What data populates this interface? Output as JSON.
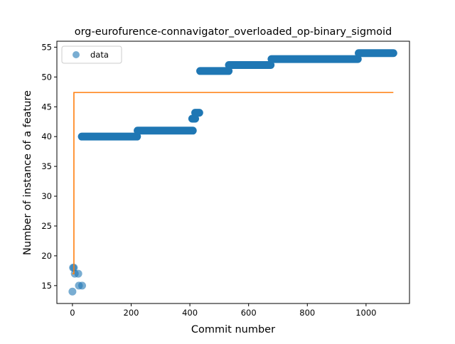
{
  "chart_data": {
    "type": "scatter",
    "title": "org-eurofurence-connavigator_overloaded_op-binary_sigmoid",
    "xlabel": "Commit number",
    "ylabel": "Number of instance of a feature",
    "xlim": [
      -53,
      1148
    ],
    "ylim": [
      12,
      56
    ],
    "xticks": [
      0,
      200,
      400,
      600,
      800,
      1000
    ],
    "yticks": [
      15,
      20,
      25,
      30,
      35,
      40,
      45,
      50,
      55
    ],
    "legend_placement": "upper-left",
    "grid": false,
    "series": [
      {
        "name": "data",
        "kind": "points",
        "color": "#1f77b4",
        "alpha": 0.6,
        "points": [
          [
            0,
            14
          ],
          [
            2,
            18
          ],
          [
            5,
            18
          ],
          [
            8,
            17
          ],
          [
            20,
            17
          ],
          [
            22,
            15
          ],
          [
            33,
            15
          ]
        ],
        "runs": [
          {
            "y": 40,
            "x_start": 32,
            "x_end": 220
          },
          {
            "y": 41,
            "x_start": 222,
            "x_end": 410
          },
          {
            "y": 43,
            "x_start": 408,
            "x_end": 418
          },
          {
            "y": 44,
            "x_start": 418,
            "x_end": 432
          },
          {
            "y": 51,
            "x_start": 435,
            "x_end": 532
          },
          {
            "y": 52,
            "x_start": 533,
            "x_end": 675
          },
          {
            "y": 53,
            "x_start": 678,
            "x_end": 972
          },
          {
            "y": 54,
            "x_start": 975,
            "x_end": 1093
          }
        ]
      },
      {
        "name": "",
        "kind": "step-line",
        "color": "#ff7f0e",
        "points": [
          [
            0,
            17
          ],
          [
            5,
            17
          ],
          [
            5,
            47.4
          ],
          [
            1093,
            47.4
          ]
        ]
      }
    ]
  }
}
